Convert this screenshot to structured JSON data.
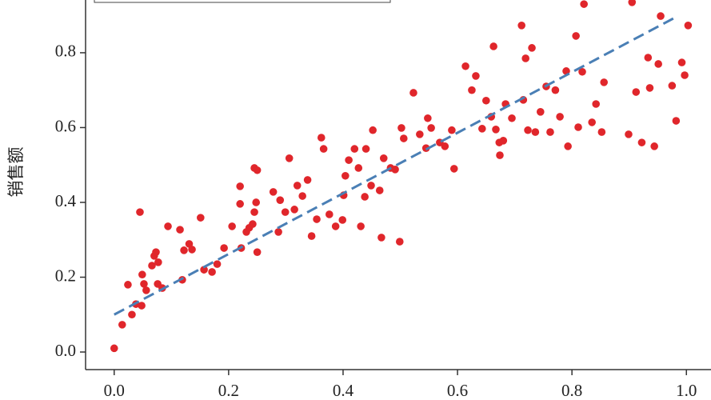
{
  "chart_data": {
    "type": "scatter",
    "y_label": "销售额",
    "xlim": [
      -0.05,
      1.043
    ],
    "ylim": [
      -0.047,
      0.941
    ],
    "xticks": [
      {
        "value": 0,
        "label": "0.0"
      },
      {
        "value": 0.2,
        "label": "0.2"
      },
      {
        "value": 0.4,
        "label": "0.4"
      },
      {
        "value": 0.6,
        "label": "0.6"
      },
      {
        "value": 0.8,
        "label": "0.8"
      },
      {
        "value": 1,
        "label": "1.0"
      }
    ],
    "yticks": [
      {
        "value": 0,
        "label": "0.0"
      },
      {
        "value": 0.2,
        "label": "0.2"
      },
      {
        "value": 0.4,
        "label": "0.4"
      },
      {
        "value": 0.6,
        "label": "0.6"
      },
      {
        "value": 0.8,
        "label": "0.8"
      }
    ],
    "series": [
      {
        "color": "#e0262b",
        "x": [
          0.0,
          0.014,
          0.024,
          0.031,
          0.038,
          0.045,
          0.048,
          0.049,
          0.052,
          0.056,
          0.066,
          0.07,
          0.073,
          0.076,
          0.077,
          0.084,
          0.094,
          0.115,
          0.119,
          0.122,
          0.131,
          0.136,
          0.151,
          0.157,
          0.171,
          0.18,
          0.192,
          0.206,
          0.22,
          0.22,
          0.222,
          0.231,
          0.236,
          0.242,
          0.245,
          0.25,
          0.25,
          0.245,
          0.248,
          0.278,
          0.287,
          0.29,
          0.299,
          0.306,
          0.315,
          0.32,
          0.329,
          0.338,
          0.345,
          0.354,
          0.362,
          0.366,
          0.376,
          0.387,
          0.399,
          0.401,
          0.404,
          0.41,
          0.42,
          0.427,
          0.431,
          0.438,
          0.44,
          0.449,
          0.452,
          0.464,
          0.467,
          0.471,
          0.483,
          0.491,
          0.499,
          0.502,
          0.506,
          0.523,
          0.534,
          0.545,
          0.548,
          0.554,
          0.569,
          0.578,
          0.59,
          0.594,
          0.614,
          0.625,
          0.632,
          0.643,
          0.65,
          0.659,
          0.663,
          0.667,
          0.673,
          0.674,
          0.68,
          0.684,
          0.695,
          0.712,
          0.715,
          0.719,
          0.723,
          0.73,
          0.736,
          0.745,
          0.755,
          0.762,
          0.771,
          0.779,
          0.79,
          0.793,
          0.807,
          0.811,
          0.818,
          0.821,
          0.835,
          0.842,
          0.852,
          0.856,
          0.899,
          0.912,
          0.922,
          0.933,
          0.936,
          0.944,
          0.951,
          0.955,
          0.975,
          0.982,
          0.992,
          0.997,
          1.003,
          0.905
        ],
        "y": [
          0.01,
          0.073,
          0.18,
          0.1,
          0.128,
          0.374,
          0.124,
          0.207,
          0.182,
          0.165,
          0.231,
          0.257,
          0.267,
          0.182,
          0.24,
          0.171,
          0.336,
          0.327,
          0.193,
          0.272,
          0.289,
          0.274,
          0.359,
          0.22,
          0.214,
          0.235,
          0.278,
          0.336,
          0.443,
          0.396,
          0.278,
          0.321,
          0.332,
          0.342,
          0.492,
          0.486,
          0.267,
          0.374,
          0.4,
          0.428,
          0.321,
          0.406,
          0.374,
          0.518,
          0.381,
          0.445,
          0.417,
          0.46,
          0.31,
          0.355,
          0.573,
          0.543,
          0.368,
          0.336,
          0.353,
          0.419,
          0.471,
          0.513,
          0.543,
          0.492,
          0.336,
          0.415,
          0.543,
          0.445,
          0.593,
          0.432,
          0.306,
          0.518,
          0.492,
          0.488,
          0.295,
          0.599,
          0.571,
          0.693,
          0.582,
          0.545,
          0.625,
          0.599,
          0.56,
          0.55,
          0.593,
          0.49,
          0.764,
          0.7,
          0.738,
          0.597,
          0.672,
          0.629,
          0.817,
          0.595,
          0.56,
          0.526,
          0.565,
          0.663,
          0.625,
          0.873,
          0.674,
          0.785,
          0.593,
          0.813,
          0.588,
          0.642,
          0.71,
          0.588,
          0.7,
          0.629,
          0.751,
          0.55,
          0.845,
          0.601,
          0.749,
          0.93,
          0.614,
          0.663,
          0.588,
          0.721,
          0.582,
          0.695,
          0.56,
          0.787,
          0.706,
          0.55,
          0.77,
          0.898,
          0.712,
          0.618,
          0.774,
          0.74,
          0.873,
          0.935
        ]
      }
    ],
    "trend": {
      "color": "#4a7fb5",
      "x": [
        0,
        0.985
      ],
      "y": [
        0.1,
        0.898
      ]
    }
  }
}
